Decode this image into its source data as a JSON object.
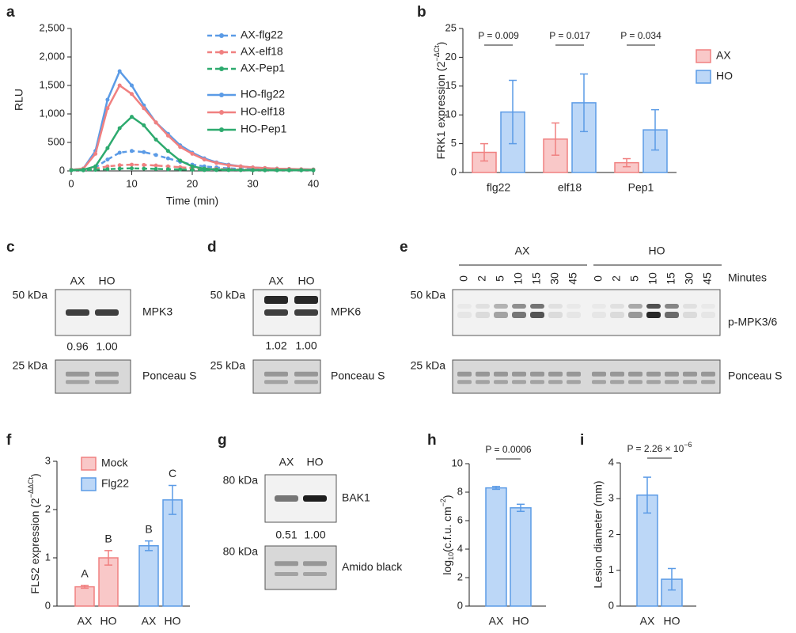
{
  "chart_data": [
    {
      "type": "line",
      "letter": "a",
      "xlabel": "Time (min)",
      "ylabel": "RLU",
      "x": [
        0,
        2,
        4,
        6,
        8,
        10,
        12,
        14,
        16,
        18,
        20,
        22,
        24,
        26,
        28,
        30,
        32,
        34,
        36,
        38,
        40
      ],
      "xlim": [
        0,
        40
      ],
      "xticks": [
        0,
        10,
        20,
        30,
        40
      ],
      "ylim": [
        0,
        2500
      ],
      "yticks": [
        0,
        500,
        {
          "value": 1000,
          "label": "1,000"
        },
        {
          "value": 1500,
          "label": "1,500"
        },
        {
          "value": 2000,
          "label": "2,000"
        },
        {
          "value": 2500,
          "label": "2,500"
        }
      ],
      "series": [
        {
          "name": "AX-flg22",
          "color": "#5b9be6",
          "linestyle": "dashed",
          "values": [
            10,
            15,
            60,
            200,
            320,
            350,
            330,
            280,
            220,
            160,
            110,
            80,
            60,
            45,
            35,
            30,
            25,
            20,
            20,
            20,
            20
          ]
        },
        {
          "name": "AX-elf18",
          "color": "#f08080",
          "linestyle": "dashed",
          "values": [
            10,
            15,
            40,
            80,
            100,
            110,
            105,
            95,
            80,
            65,
            50,
            40,
            35,
            30,
            25,
            20,
            20,
            20,
            20,
            20,
            20
          ]
        },
        {
          "name": "AX-Pep1",
          "color": "#2daa6e",
          "linestyle": "dashed",
          "values": [
            10,
            10,
            20,
            30,
            40,
            45,
            40,
            35,
            30,
            25,
            20,
            15,
            15,
            15,
            15,
            10,
            10,
            10,
            10,
            10,
            10
          ]
        },
        {
          "name": "HO-flg22",
          "color": "#5b9be6",
          "linestyle": "solid",
          "values": [
            20,
            40,
            350,
            1250,
            1750,
            1500,
            1150,
            850,
            650,
            450,
            320,
            220,
            150,
            110,
            80,
            60,
            50,
            40,
            35,
            30,
            25
          ]
        },
        {
          "name": "HO-elf18",
          "color": "#f08080",
          "linestyle": "solid",
          "values": [
            20,
            40,
            300,
            1100,
            1500,
            1350,
            1100,
            850,
            620,
            420,
            300,
            200,
            140,
            100,
            80,
            60,
            50,
            40,
            35,
            30,
            25
          ]
        },
        {
          "name": "HO-Pep1",
          "color": "#2daa6e",
          "linestyle": "solid",
          "values": [
            15,
            20,
            80,
            400,
            750,
            950,
            800,
            550,
            350,
            180,
            80,
            40,
            25,
            20,
            15,
            15,
            15,
            15,
            15,
            15,
            15
          ]
        }
      ]
    },
    {
      "type": "bar",
      "letter": "b",
      "ylabel_main": "FRK1 expression (2",
      "ylabel_sup": "−ΔCt",
      "ylabel_end": ")",
      "categories": [
        "flg22",
        "elf18",
        "Pep1"
      ],
      "ylim": [
        0,
        25
      ],
      "yticks": [
        0,
        5,
        10,
        15,
        20,
        25
      ],
      "annotations": [
        "P = 0.009",
        "P = 0.017",
        "P = 0.034"
      ],
      "series": [
        {
          "name": "AX",
          "color": "#f08080",
          "fill": "#f9c8c8",
          "values": [
            3.5,
            5.8,
            1.7
          ],
          "errors": [
            1.5,
            2.8,
            0.7
          ]
        },
        {
          "name": "HO",
          "color": "#5b9be6",
          "fill": "#bcd7f7",
          "values": [
            10.5,
            12.1,
            7.4
          ],
          "errors": [
            5.5,
            5.0,
            3.5
          ]
        }
      ]
    },
    {
      "type": "bar",
      "letter": "f",
      "ylabel_main": "FLS2 expression (2",
      "ylabel_sup": "−ΔΔCt",
      "ylabel_end": ")",
      "categories": [
        "AX",
        "HO"
      ],
      "ylim": [
        0,
        3
      ],
      "yticks": [
        0,
        1,
        2,
        3
      ],
      "series": [
        {
          "name": "Mock",
          "color": "#f08080",
          "fill": "#f9c8c8",
          "values": [
            0.4,
            1.0
          ],
          "errors": [
            0.03,
            0.15
          ],
          "letters": [
            "A",
            "B"
          ]
        },
        {
          "name": "Flg22",
          "color": "#5b9be6",
          "fill": "#bcd7f7",
          "values": [
            1.25,
            2.2
          ],
          "errors": [
            0.1,
            0.3
          ],
          "letters": [
            "B",
            "C"
          ]
        }
      ]
    },
    {
      "type": "bar",
      "letter": "h",
      "ylabel_main": "log",
      "ylabel_sub": "10",
      "ylabel_mid": "(c.f.u. cm",
      "ylabel_sup": "−2",
      "ylabel_end": ")",
      "categories": [
        "AX",
        "HO"
      ],
      "ylim": [
        0,
        10
      ],
      "yticks": [
        0,
        2,
        4,
        6,
        8,
        10
      ],
      "annotation": "P = 0.0006",
      "color": "#5b9be6",
      "fill": "#bcd7f7",
      "values": [
        8.3,
        6.9
      ],
      "errors": [
        0.1,
        0.25
      ]
    },
    {
      "type": "bar",
      "letter": "i",
      "ylabel": "Lesion diameter (mm)",
      "categories": [
        "AX",
        "HO"
      ],
      "ylim": [
        0,
        4
      ],
      "yticks": [
        0,
        1,
        2,
        3,
        4
      ],
      "annotation_main": "P = 2.26 × 10",
      "annotation_sup": "−6",
      "color": "#5b9be6",
      "fill": "#bcd7f7",
      "values": [
        3.1,
        0.75
      ],
      "errors": [
        0.5,
        0.3
      ]
    }
  ],
  "blots": {
    "c": {
      "letter": "c",
      "lanes": [
        "AX",
        "HO"
      ],
      "rows": [
        {
          "marker": "50 kDa",
          "label": "MPK3",
          "quant": [
            "0.96",
            "1.00"
          ]
        },
        {
          "marker": "25 kDa",
          "label": "Ponceau S"
        }
      ]
    },
    "d": {
      "letter": "d",
      "lanes": [
        "AX",
        "HO"
      ],
      "rows": [
        {
          "marker": "50 kDa",
          "label": "MPK6",
          "quant": [
            "1.02",
            "1.00"
          ]
        },
        {
          "marker": "25 kDa",
          "label": "Ponceau S"
        }
      ]
    },
    "e": {
      "letter": "e",
      "groups": [
        "AX",
        "HO"
      ],
      "lanes": [
        "0",
        "2",
        "5",
        "10",
        "15",
        "30",
        "45",
        "0",
        "2",
        "5",
        "10",
        "15",
        "30",
        "45"
      ],
      "unit": "Minutes",
      "rows": [
        {
          "marker": "50 kDa",
          "label": "p-MPK3/6"
        },
        {
          "marker": "25 kDa",
          "label": "Ponceau S"
        }
      ]
    },
    "g": {
      "letter": "g",
      "lanes": [
        "AX",
        "HO"
      ],
      "rows": [
        {
          "marker": "80 kDa",
          "label": "BAK1",
          "quant": [
            "0.51",
            "1.00"
          ]
        },
        {
          "marker": "80 kDa",
          "label": "Amido black"
        }
      ]
    }
  }
}
